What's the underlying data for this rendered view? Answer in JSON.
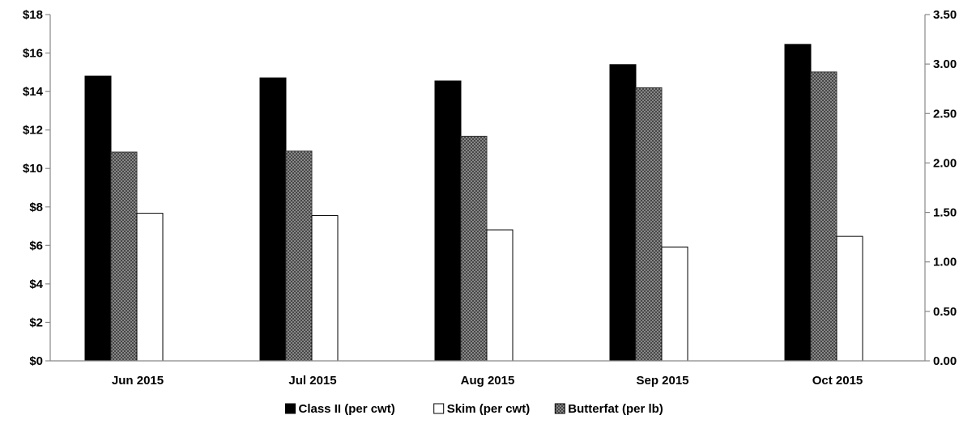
{
  "chart_data": {
    "type": "bar",
    "categories": [
      "Jun 2015",
      "Jul 2015",
      "Aug 2015",
      "Sep 2015",
      "Oct 2015"
    ],
    "series": [
      {
        "name": "Class II (per cwt)",
        "axis": "left",
        "color": "#000000",
        "values": [
          14.8,
          14.71,
          14.55,
          15.4,
          16.45
        ]
      },
      {
        "name": "Butterfat (per lb)",
        "axis": "right",
        "color": "#8c8c8c",
        "pattern": "crosshatch",
        "values": [
          2.11,
          2.12,
          2.27,
          2.76,
          2.92
        ]
      },
      {
        "name": "Skim (per cwt)",
        "axis": "left",
        "color": "#ffffff",
        "values": [
          7.67,
          7.55,
          6.81,
          5.92,
          6.47
        ]
      }
    ],
    "legend_order": [
      "Class II (per cwt)",
      "Skim (per cwt)",
      "Butterfat (per lb)"
    ],
    "left_axis": {
      "min": 0,
      "max": 18,
      "step": 2,
      "tick_labels": [
        "$0",
        "$2",
        "$4",
        "$6",
        "$8",
        "$10",
        "$12",
        "$14",
        "$16",
        "$18"
      ]
    },
    "right_axis": {
      "min": 0,
      "max": 3.5,
      "step": 0.5,
      "tick_labels": [
        "0.00",
        "0.50",
        "1.00",
        "1.50",
        "2.00",
        "2.50",
        "3.00",
        "3.50"
      ]
    },
    "legend_position": "bottom",
    "grid": false,
    "title": "",
    "xlabel": "",
    "ylabel": ""
  }
}
